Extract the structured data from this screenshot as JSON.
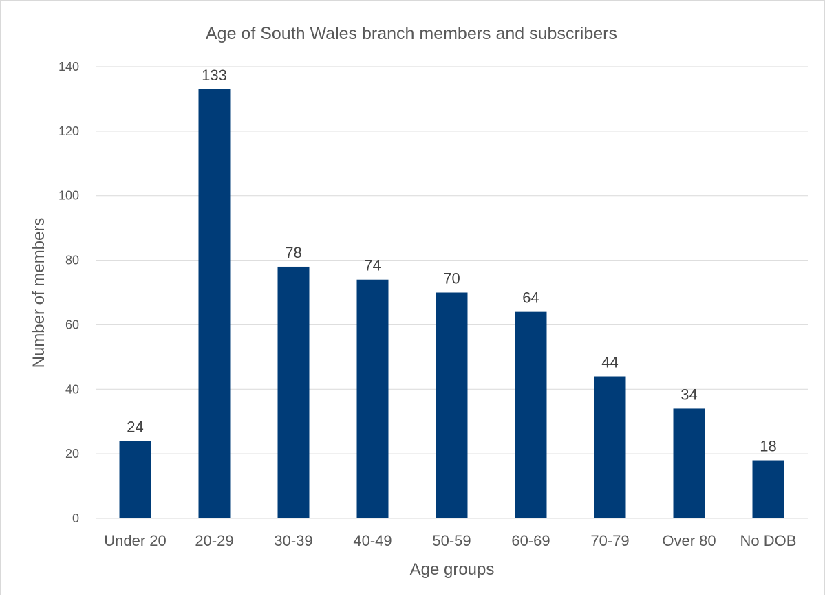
{
  "chart_data": {
    "type": "bar",
    "title": "Age of South Wales branch members and subscribers",
    "xlabel": "Age groups",
    "ylabel": "Number of members",
    "categories": [
      "Under 20",
      "20-29",
      "30-39",
      "40-49",
      "50-59",
      "60-69",
      "70-79",
      "Over 80",
      "No DOB"
    ],
    "values": [
      24,
      133,
      78,
      74,
      70,
      64,
      44,
      34,
      18
    ],
    "ylim": [
      0,
      140
    ],
    "yticks": [
      0,
      20,
      40,
      60,
      80,
      100,
      120,
      140
    ],
    "grid": true,
    "legend": "none",
    "bar_color": "#003C78",
    "data_labels": true
  }
}
